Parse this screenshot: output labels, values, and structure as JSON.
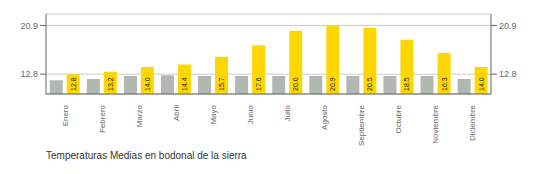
{
  "chart_data": {
    "type": "bar",
    "title": "Temperaturas Medias en bodonal de la sierra",
    "categories": [
      "Enero",
      "Febrero",
      "Marzo",
      "Abril",
      "Mayo",
      "Junio",
      "Julio",
      "Agosto",
      "Septiembre",
      "Octubre",
      "Noviembre",
      "Diciembre"
    ],
    "series": [
      {
        "color": "#B0B8B0",
        "values": [
          11.8,
          12.0,
          12.5,
          12.6,
          12.5,
          12.5,
          12.5,
          12.5,
          12.5,
          12.5,
          12.5,
          12.0
        ]
      },
      {
        "color": "#FFD700",
        "values": [
          12.8,
          13.2,
          14.0,
          14.4,
          15.7,
          17.6,
          20.0,
          20.9,
          20.5,
          18.5,
          16.3,
          14.0
        ],
        "data_labels": true,
        "value_labels": [
          "12.8",
          "13.2",
          "14.0",
          "14.4",
          "15.7",
          "17.6",
          "20.0",
          "20.9",
          "20.5",
          "18.5",
          "16.3",
          "14.0"
        ]
      }
    ],
    "ylim": [
      9.5,
      22.8
    ],
    "yticks": [
      12.8,
      20.9
    ],
    "y2lim": [
      9.5,
      22.8
    ],
    "y2ticks": [
      12.8,
      20.9
    ],
    "grid": true
  }
}
